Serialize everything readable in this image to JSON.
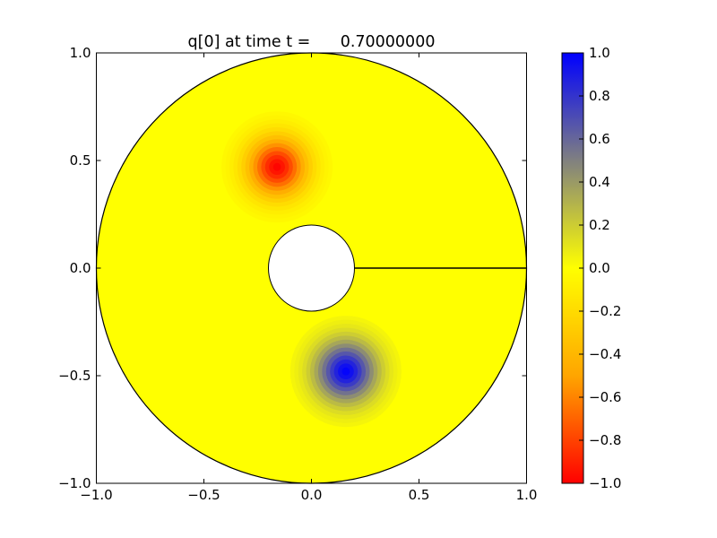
{
  "chart_data": [
    {
      "type": "heatmap",
      "title": "q[0] at time t =      0.70000000",
      "domain": "annulus",
      "outer_radius": 1.0,
      "inner_radius": 0.2,
      "xlim": [
        -1.0,
        1.0
      ],
      "ylim": [
        -1.0,
        1.0
      ],
      "x_ticks": [
        "−1.0",
        "−0.5",
        "0.0",
        "0.5",
        "1.0"
      ],
      "x_tick_values": [
        -1.0,
        -0.5,
        0.0,
        0.5,
        1.0
      ],
      "y_ticks": [
        "1.0",
        "0.5",
        "0.0",
        "−0.5",
        "−1.0"
      ],
      "y_tick_values": [
        1.0,
        0.5,
        0.0,
        -0.5,
        -1.0
      ],
      "grid": false,
      "background_value": 0.0,
      "features": [
        {
          "center": [
            -0.16,
            0.47
          ],
          "peak": -1.0
        },
        {
          "center": [
            0.16,
            -0.48
          ],
          "peak": 1.0
        }
      ],
      "cut_line": {
        "from": [
          0.2,
          0.0
        ],
        "to": [
          1.0,
          0.0
        ]
      }
    },
    {
      "type": "colorbar",
      "vmin": -1.0,
      "vmax": 1.0,
      "ticks": [
        "1.0",
        "0.8",
        "0.6",
        "0.4",
        "0.2",
        "0.0",
        "−0.2",
        "−0.4",
        "−0.6",
        "−0.8",
        "−1.0"
      ],
      "tick_values": [
        1.0,
        0.8,
        0.6,
        0.4,
        0.2,
        0.0,
        -0.2,
        -0.4,
        -0.6,
        -0.8,
        -1.0
      ],
      "colors": {
        "neg_end": "#ff0000",
        "neg_mid": "#ffa500",
        "zero": "#ffff00",
        "pos_mid": "#808080",
        "pos_end": "#0000ff"
      }
    }
  ]
}
